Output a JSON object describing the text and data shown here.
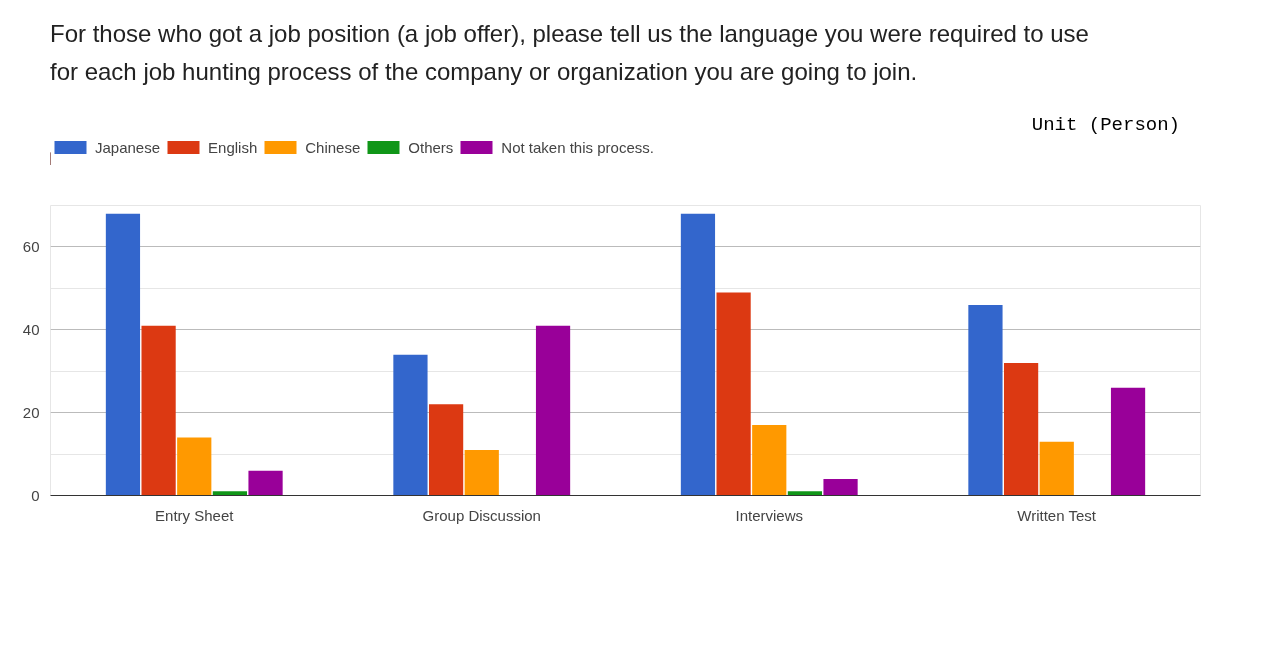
{
  "chart_data": {
    "type": "bar",
    "title": "For those who got a job position (a job offer), please tell us the language you were required to use\nfor each job hunting process of the company or organization you are going to join.",
    "annotations": [
      "Unit (Person)"
    ],
    "categories": [
      "Entry Sheet",
      "Group Discussion",
      "Interviews",
      "Written Test"
    ],
    "series": [
      {
        "name": "Japanese",
        "color": "#3366cc",
        "values": [
          68,
          34,
          68,
          46
        ]
      },
      {
        "name": "English",
        "color": "#dc3912",
        "values": [
          41,
          22,
          49,
          32
        ]
      },
      {
        "name": "Chinese",
        "color": "#ff9900",
        "values": [
          14,
          11,
          17,
          13
        ]
      },
      {
        "name": "Others",
        "color": "#109618",
        "values": [
          1,
          0,
          1,
          0
        ]
      },
      {
        "name": "Not taken this process.",
        "color": "#990099",
        "values": [
          6,
          41,
          4,
          26
        ]
      }
    ],
    "ylim": [
      0,
      70
    ],
    "yticks": [
      0,
      20,
      40,
      60
    ],
    "grid": "y",
    "legend": "top"
  }
}
